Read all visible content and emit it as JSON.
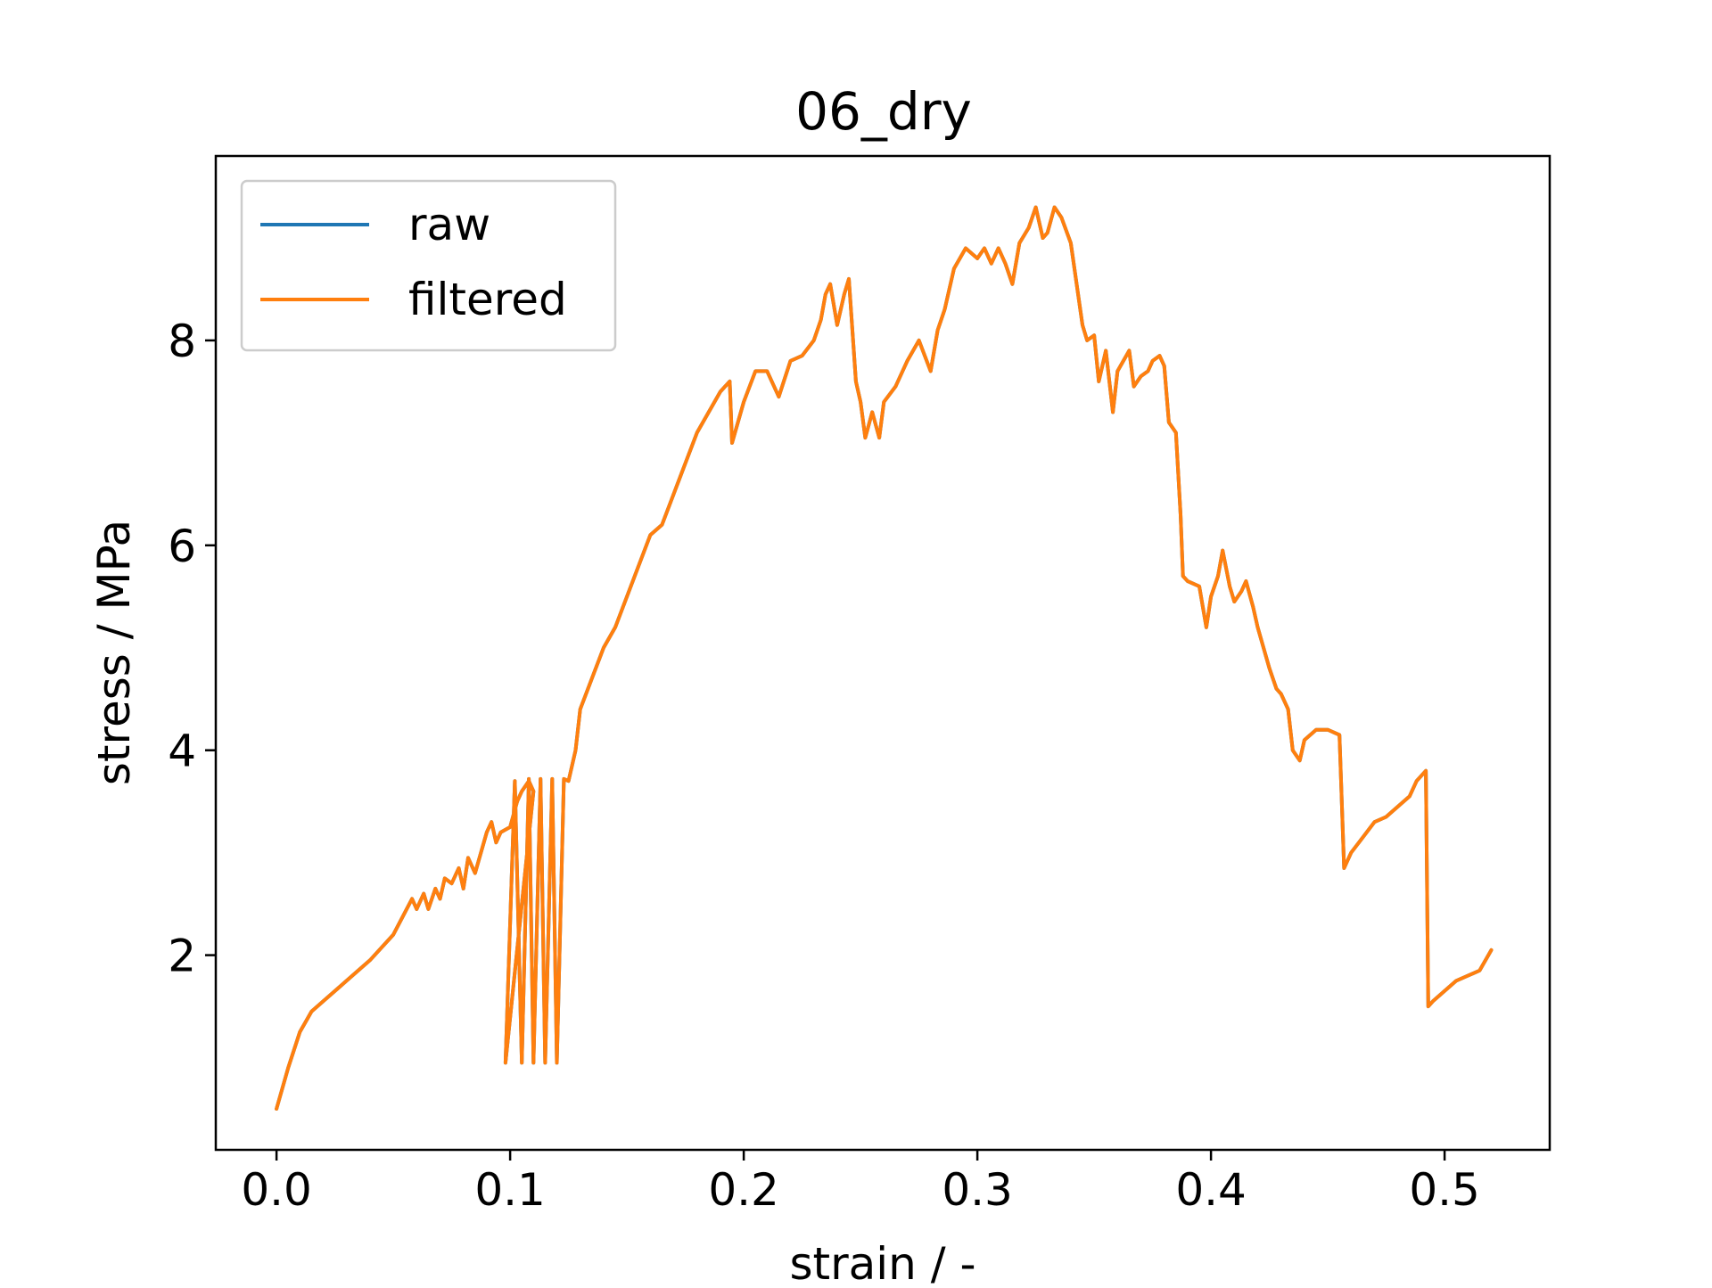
{
  "chart_data": {
    "type": "line",
    "title": "06_dry",
    "xlabel": "strain / -",
    "ylabel": "stress / MPa",
    "xlim": [
      -0.026,
      0.545
    ],
    "ylim": [
      0.1,
      9.8
    ],
    "xticks": [
      0.0,
      0.1,
      0.2,
      0.3,
      0.4,
      0.5
    ],
    "xtick_labels": [
      "0.0",
      "0.1",
      "0.2",
      "0.3",
      "0.4",
      "0.5"
    ],
    "yticks": [
      2,
      4,
      6,
      8
    ],
    "ytick_labels": [
      "2",
      "4",
      "6",
      "8"
    ],
    "grid": false,
    "legend_position": "top-left",
    "colors": {
      "raw": "#1f77b4",
      "filtered": "#ff7f0e"
    },
    "series": [
      {
        "name": "raw",
        "x": [
          0.0,
          0.005,
          0.01,
          0.015,
          0.02,
          0.03,
          0.04,
          0.05,
          0.058,
          0.06,
          0.063,
          0.065,
          0.068,
          0.07,
          0.072,
          0.075,
          0.078,
          0.08,
          0.082,
          0.085,
          0.09,
          0.092,
          0.094,
          0.096,
          0.1,
          0.103,
          0.105,
          0.108,
          0.11,
          0.098,
          0.102,
          0.105,
          0.108,
          0.11,
          0.113,
          0.115,
          0.118,
          0.12,
          0.123,
          0.125,
          0.128,
          0.13,
          0.135,
          0.14,
          0.145,
          0.15,
          0.155,
          0.16,
          0.165,
          0.17,
          0.175,
          0.18,
          0.185,
          0.19,
          0.194,
          0.195,
          0.2,
          0.205,
          0.21,
          0.215,
          0.22,
          0.225,
          0.23,
          0.233,
          0.235,
          0.237,
          0.24,
          0.243,
          0.245,
          0.248,
          0.25,
          0.252,
          0.255,
          0.258,
          0.26,
          0.265,
          0.27,
          0.275,
          0.28,
          0.283,
          0.286,
          0.29,
          0.295,
          0.3,
          0.303,
          0.306,
          0.309,
          0.312,
          0.315,
          0.318,
          0.322,
          0.325,
          0.328,
          0.33,
          0.333,
          0.336,
          0.34,
          0.345,
          0.347,
          0.35,
          0.352,
          0.355,
          0.358,
          0.36,
          0.365,
          0.367,
          0.37,
          0.373,
          0.375,
          0.378,
          0.38,
          0.382,
          0.385,
          0.387,
          0.388,
          0.39,
          0.395,
          0.398,
          0.4,
          0.403,
          0.405,
          0.408,
          0.41,
          0.413,
          0.415,
          0.418,
          0.42,
          0.425,
          0.428,
          0.43,
          0.433,
          0.435,
          0.438,
          0.44,
          0.445,
          0.45,
          0.455,
          0.457,
          0.46,
          0.465,
          0.47,
          0.475,
          0.48,
          0.485,
          0.488,
          0.49,
          0.492,
          0.493,
          0.495,
          0.5,
          0.505,
          0.51,
          0.515,
          0.52
        ],
        "y": [
          0.5,
          0.9,
          1.25,
          1.45,
          1.55,
          1.75,
          1.95,
          2.2,
          2.55,
          2.45,
          2.6,
          2.45,
          2.65,
          2.55,
          2.75,
          2.7,
          2.85,
          2.65,
          2.95,
          2.8,
          3.2,
          3.3,
          3.1,
          3.2,
          3.25,
          3.5,
          3.6,
          3.7,
          3.6,
          0.95,
          3.7,
          0.95,
          3.72,
          0.95,
          3.72,
          0.95,
          3.72,
          0.95,
          3.72,
          3.7,
          4.0,
          4.4,
          4.7,
          5.0,
          5.2,
          5.5,
          5.8,
          6.1,
          6.2,
          6.5,
          6.8,
          7.1,
          7.3,
          7.5,
          7.6,
          7.0,
          7.4,
          7.7,
          7.7,
          7.45,
          7.8,
          7.85,
          8.0,
          8.2,
          8.45,
          8.55,
          8.15,
          8.45,
          8.6,
          7.6,
          7.4,
          7.05,
          7.3,
          7.05,
          7.4,
          7.55,
          7.8,
          8.0,
          7.7,
          8.1,
          8.3,
          8.7,
          8.9,
          8.8,
          8.9,
          8.75,
          8.9,
          8.75,
          8.55,
          8.95,
          9.1,
          9.3,
          9.0,
          9.05,
          9.3,
          9.2,
          8.95,
          8.15,
          8.0,
          8.05,
          7.6,
          7.9,
          7.3,
          7.7,
          7.9,
          7.55,
          7.65,
          7.7,
          7.8,
          7.85,
          7.75,
          7.2,
          7.1,
          6.3,
          5.7,
          5.65,
          5.6,
          5.2,
          5.5,
          5.7,
          5.95,
          5.6,
          5.45,
          5.55,
          5.65,
          5.4,
          5.2,
          4.8,
          4.6,
          4.55,
          4.4,
          4.0,
          3.9,
          4.1,
          4.2,
          4.2,
          4.15,
          2.85,
          3.0,
          3.15,
          3.3,
          3.35,
          3.45,
          3.55,
          3.7,
          3.75,
          3.8,
          1.5,
          1.55,
          1.65,
          1.75,
          1.8,
          1.85,
          2.05
        ]
      },
      {
        "name": "filtered",
        "x": [
          0.0,
          0.005,
          0.01,
          0.015,
          0.02,
          0.03,
          0.04,
          0.05,
          0.058,
          0.06,
          0.063,
          0.065,
          0.068,
          0.07,
          0.072,
          0.075,
          0.078,
          0.08,
          0.082,
          0.085,
          0.09,
          0.092,
          0.094,
          0.096,
          0.1,
          0.103,
          0.105,
          0.108,
          0.11,
          0.098,
          0.102,
          0.105,
          0.108,
          0.11,
          0.113,
          0.115,
          0.118,
          0.12,
          0.123,
          0.125,
          0.128,
          0.13,
          0.135,
          0.14,
          0.145,
          0.15,
          0.155,
          0.16,
          0.165,
          0.17,
          0.175,
          0.18,
          0.185,
          0.19,
          0.194,
          0.195,
          0.2,
          0.205,
          0.21,
          0.215,
          0.22,
          0.225,
          0.23,
          0.233,
          0.235,
          0.237,
          0.24,
          0.243,
          0.245,
          0.248,
          0.25,
          0.252,
          0.255,
          0.258,
          0.26,
          0.265,
          0.27,
          0.275,
          0.28,
          0.283,
          0.286,
          0.29,
          0.295,
          0.3,
          0.303,
          0.306,
          0.309,
          0.312,
          0.315,
          0.318,
          0.322,
          0.325,
          0.328,
          0.33,
          0.333,
          0.336,
          0.34,
          0.345,
          0.347,
          0.35,
          0.352,
          0.355,
          0.358,
          0.36,
          0.365,
          0.367,
          0.37,
          0.373,
          0.375,
          0.378,
          0.38,
          0.382,
          0.385,
          0.387,
          0.388,
          0.39,
          0.395,
          0.398,
          0.4,
          0.403,
          0.405,
          0.408,
          0.41,
          0.413,
          0.415,
          0.418,
          0.42,
          0.425,
          0.428,
          0.43,
          0.433,
          0.435,
          0.438,
          0.44,
          0.445,
          0.45,
          0.455,
          0.457,
          0.46,
          0.465,
          0.47,
          0.475,
          0.48,
          0.485,
          0.488,
          0.49,
          0.492,
          0.493,
          0.495,
          0.5,
          0.505,
          0.51,
          0.515,
          0.52
        ],
        "y": [
          0.5,
          0.9,
          1.25,
          1.45,
          1.55,
          1.75,
          1.95,
          2.2,
          2.55,
          2.45,
          2.6,
          2.45,
          2.65,
          2.55,
          2.75,
          2.7,
          2.85,
          2.65,
          2.95,
          2.8,
          3.2,
          3.3,
          3.1,
          3.2,
          3.25,
          3.5,
          3.6,
          3.7,
          3.6,
          0.95,
          3.7,
          0.95,
          3.72,
          0.95,
          3.72,
          0.95,
          3.72,
          0.95,
          3.72,
          3.7,
          4.0,
          4.4,
          4.7,
          5.0,
          5.2,
          5.5,
          5.8,
          6.1,
          6.2,
          6.5,
          6.8,
          7.1,
          7.3,
          7.5,
          7.6,
          7.0,
          7.4,
          7.7,
          7.7,
          7.45,
          7.8,
          7.85,
          8.0,
          8.2,
          8.45,
          8.55,
          8.15,
          8.45,
          8.6,
          7.6,
          7.4,
          7.05,
          7.3,
          7.05,
          7.4,
          7.55,
          7.8,
          8.0,
          7.7,
          8.1,
          8.3,
          8.7,
          8.9,
          8.8,
          8.9,
          8.75,
          8.9,
          8.75,
          8.55,
          8.95,
          9.1,
          9.3,
          9.0,
          9.05,
          9.3,
          9.2,
          8.95,
          8.15,
          8.0,
          8.05,
          7.6,
          7.9,
          7.3,
          7.7,
          7.9,
          7.55,
          7.65,
          7.7,
          7.8,
          7.85,
          7.75,
          7.2,
          7.1,
          6.3,
          5.7,
          5.65,
          5.6,
          5.2,
          5.5,
          5.7,
          5.95,
          5.6,
          5.45,
          5.55,
          5.65,
          5.4,
          5.2,
          4.8,
          4.6,
          4.55,
          4.4,
          4.0,
          3.9,
          4.1,
          4.2,
          4.2,
          4.15,
          2.85,
          3.0,
          3.15,
          3.3,
          3.35,
          3.45,
          3.55,
          3.7,
          3.75,
          3.8,
          1.5,
          1.55,
          1.65,
          1.75,
          1.8,
          1.85,
          2.05
        ]
      }
    ]
  }
}
